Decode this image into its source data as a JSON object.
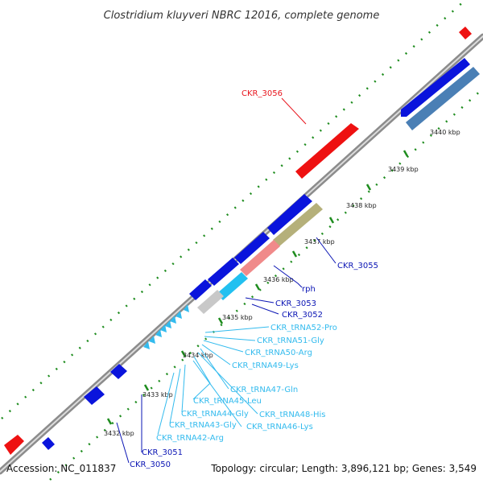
{
  "title": "Clostridium kluyveri NBRC 12016, complete genome",
  "footer": {
    "accession": "Accession: NC_011837",
    "stats": "Topology: circular; Length: 3,896,121 bp; Genes: 3,549"
  },
  "kbp_ticks": [
    "3432 kbp",
    "3433 kbp",
    "3434 kbp",
    "3435 kbp",
    "3436 kbp",
    "3437 kbp",
    "3438 kbp",
    "3439 kbp",
    "3440 kbp"
  ],
  "gene_labels": [
    {
      "text": "CKR_3056",
      "color": "#e8141c"
    },
    {
      "text": "CKR_3055",
      "color": "#0a14b4"
    },
    {
      "text": "rph",
      "color": "#0a14b4"
    },
    {
      "text": "CKR_3053",
      "color": "#0a14b4"
    },
    {
      "text": "CKR_3052",
      "color": "#0a14b4"
    },
    {
      "text": "CKR_tRNA52-Pro",
      "color": "#33bbee"
    },
    {
      "text": "CKR_tRNA51-Gly",
      "color": "#33bbee"
    },
    {
      "text": "CKR_tRNA50-Arg",
      "color": "#33bbee"
    },
    {
      "text": "CKR_tRNA49-Lys",
      "color": "#33bbee"
    },
    {
      "text": "CKR_tRNA47-Gln",
      "color": "#33bbee"
    },
    {
      "text": "CKR_tRNA48-His",
      "color": "#33bbee"
    },
    {
      "text": "CKR_tRNA45-Leu",
      "color": "#33bbee"
    },
    {
      "text": "CKR_tRNA46-Lys",
      "color": "#33bbee"
    },
    {
      "text": "CKR_tRNA44-Gly",
      "color": "#33bbee"
    },
    {
      "text": "CKR_tRNA43-Gly",
      "color": "#33bbee"
    },
    {
      "text": "CKR_tRNA42-Arg",
      "color": "#33bbee"
    },
    {
      "text": "CKR_3051",
      "color": "#0a14b4"
    },
    {
      "text": "CKR_3050",
      "color": "#0a14b4"
    }
  ],
  "colors": {
    "backbone": "#8c8c8c",
    "tick_dots": "#1e8c1e",
    "cds_blue": "#0a14dc",
    "cds_red": "#ee1111",
    "steelblue": "#4a7fb5",
    "olive": "#b5b07a",
    "pink": "#f08a8a",
    "cyan": "#22c0f0",
    "gray": "#c8c8c8"
  }
}
